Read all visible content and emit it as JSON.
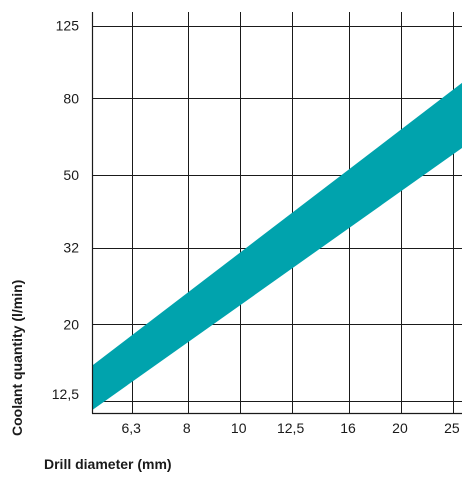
{
  "chart_data": {
    "type": "area",
    "xlabel": "Drill diameter (mm)",
    "ylabel": "Coolant quantity (l/min)",
    "x_scale": "log",
    "y_scale": "log",
    "x_ticks": [
      "6,3",
      "8",
      "10",
      "12,5",
      "16",
      "20",
      "25"
    ],
    "x_tick_values": [
      6.3,
      8,
      10,
      12.5,
      16,
      20,
      25
    ],
    "y_ticks": [
      "12,5",
      "20",
      "32",
      "50",
      "80",
      "125"
    ],
    "y_tick_values": [
      12.5,
      20,
      32,
      50,
      80,
      125
    ],
    "xlim": [
      5.3,
      26
    ],
    "ylim": [
      11.6,
      136
    ],
    "grid": true,
    "band": {
      "color": "#00a3ad",
      "x": [
        5.3,
        26
      ],
      "upper": [
        15.5,
        88
      ],
      "lower": [
        11.8,
        59
      ]
    }
  }
}
